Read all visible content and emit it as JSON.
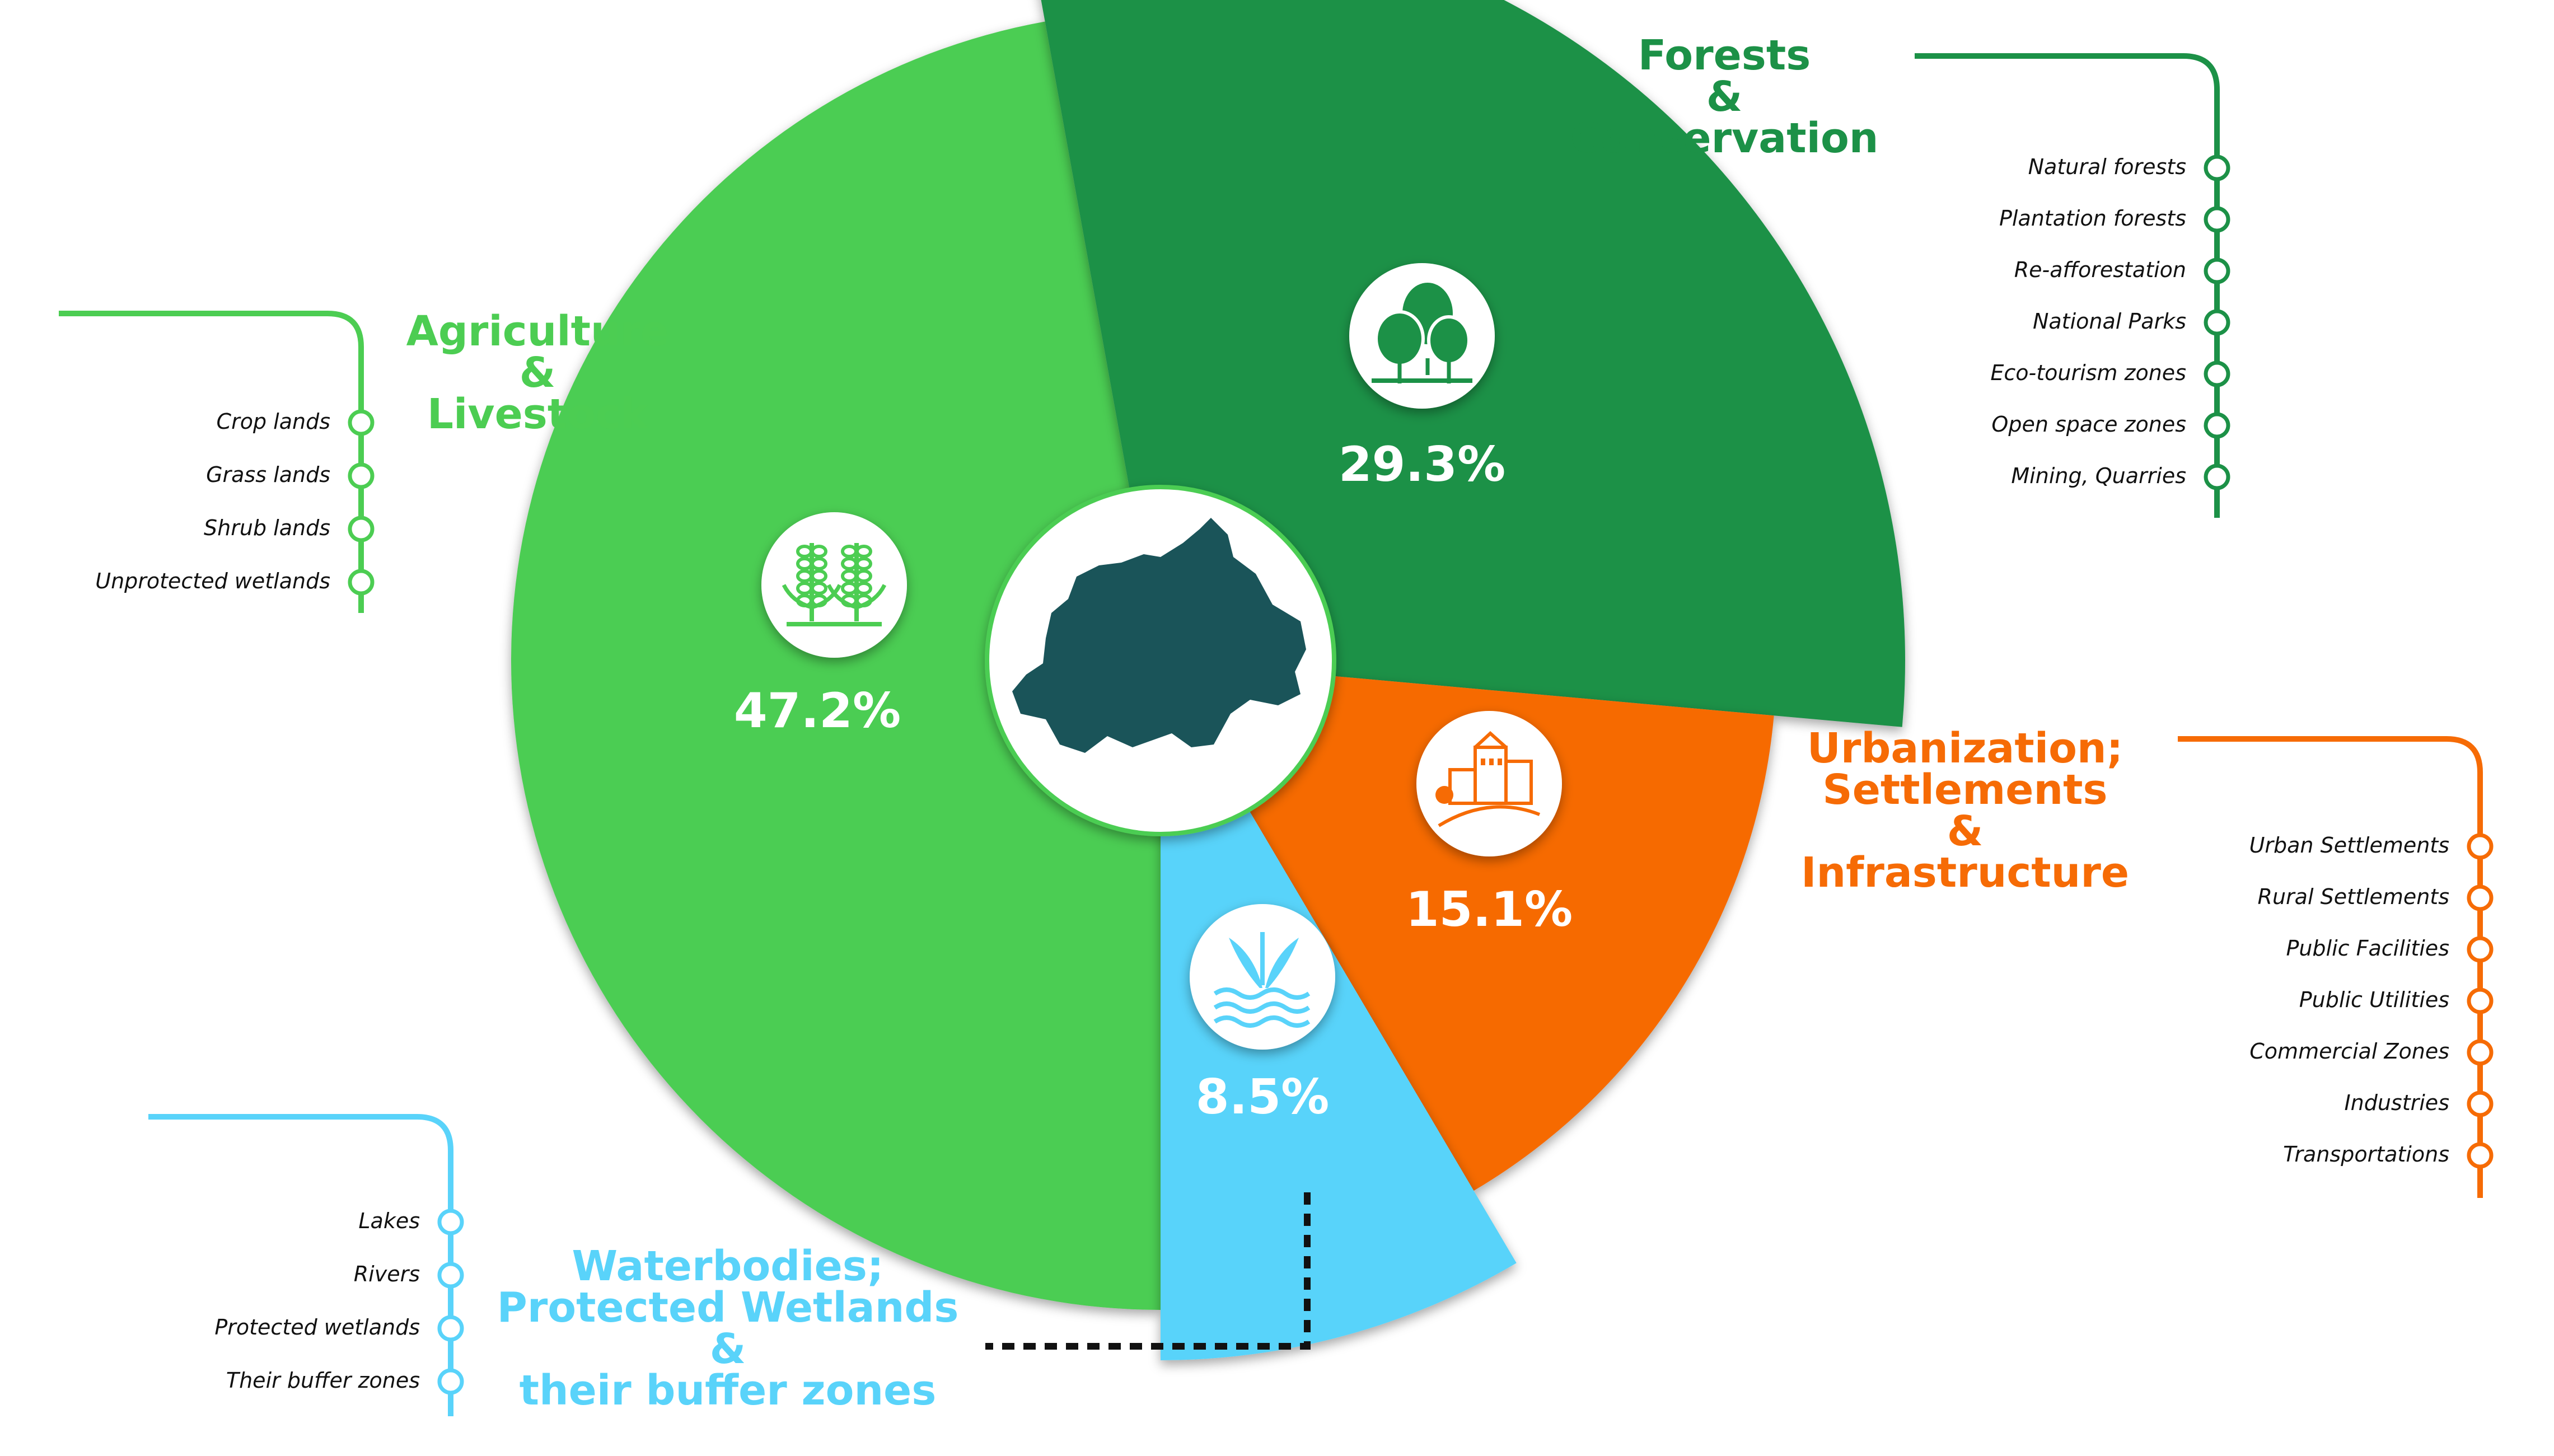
{
  "chart_data": {
    "type": "pie",
    "slices": [
      {
        "category": "Agriculture & Livestock",
        "label": "47.2%",
        "value": 47.2,
        "color": "#4CCD52",
        "icon": "maize-crops-icon"
      },
      {
        "category": "Forests & Conservation",
        "label": "29.3%",
        "value": 29.3,
        "color": "#1C9147",
        "icon": "forest-trees-icon"
      },
      {
        "category": "Urbanization; Settlements & Infrastructure",
        "label": "15.1%",
        "value": 15.1,
        "color": "#F66B05",
        "icon": "town-buildings-icon"
      },
      {
        "category": "Waterbodies; Protected Wetlands & their buffer zones",
        "label": "8.5%",
        "value": 8.5,
        "color": "#59D3FA",
        "icon": "wetland-plants-water-icon"
      }
    ],
    "center_icon": "rwanda-map-icon",
    "groups": [
      {
        "key": "agriculture",
        "title_lines": [
          "Agriculture",
          "&",
          "Livestock"
        ],
        "color": "#4CCD52",
        "items": [
          "Crop lands",
          "Grass lands",
          "Shrub lands",
          "Unprotected wetlands"
        ]
      },
      {
        "key": "forests",
        "title_lines": [
          "Forests",
          "&",
          "Conservation"
        ],
        "color": "#1C9147",
        "items": [
          "Natural forests",
          "Plantation forests",
          "Re-afforestation",
          "National Parks",
          "Eco-tourism zones",
          "Open space zones",
          "Mining, Quarries"
        ]
      },
      {
        "key": "urbanization",
        "title_lines": [
          "Urbanization;",
          "Settlements",
          "&",
          "Infrastructure"
        ],
        "color": "#F66B05",
        "items": [
          "Urban Settlements",
          "Rural Settlements",
          "Public Facilities",
          "Public Utilities",
          "Commercial Zones",
          "Industries",
          "Transportations"
        ]
      },
      {
        "key": "waterbodies",
        "title_lines": [
          "Waterbodies;",
          "Protected Wetlands",
          "&",
          "their buffer zones"
        ],
        "color": "#59D3FA",
        "items": [
          "Lakes",
          "Rivers",
          "Protected wetlands",
          "Their buffer zones"
        ]
      }
    ]
  }
}
